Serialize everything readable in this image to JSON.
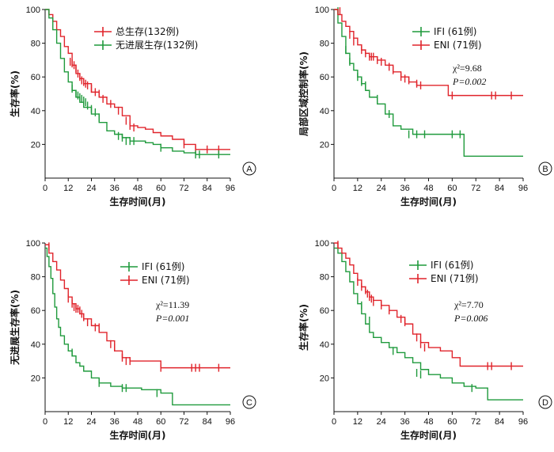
{
  "chart_data": [
    {
      "type": "line",
      "panel_label": "A",
      "xlabel": "生存时间(月)",
      "ylabel": "生存率(%)",
      "xlim": [
        0,
        96
      ],
      "ylim": [
        0,
        100
      ],
      "xticks": [
        "0",
        "12",
        "24",
        "36",
        "48",
        "60",
        "72",
        "84",
        "96"
      ],
      "yticks": [
        "20",
        "40",
        "60",
        "80",
        "100"
      ],
      "legend_position": "top-right",
      "stat_lines": [],
      "series": [
        {
          "name": "总生存(132例)",
          "color": "#e0242b",
          "x": [
            0,
            2,
            4,
            6,
            8,
            10,
            12,
            14,
            16,
            18,
            20,
            24,
            28,
            32,
            36,
            40,
            44,
            48,
            52,
            56,
            60,
            66,
            72,
            78,
            84,
            96
          ],
          "y": [
            100,
            97,
            93,
            88,
            84,
            78,
            74,
            67,
            62,
            59,
            56,
            51,
            48,
            44,
            42,
            37,
            31,
            30,
            29,
            27,
            25,
            23,
            20,
            17,
            17,
            17
          ],
          "censor_x": [
            13,
            14,
            15,
            16,
            17,
            18,
            19,
            20,
            21,
            22,
            24,
            26,
            28,
            30,
            34,
            38,
            42,
            44,
            46,
            72,
            78,
            84,
            90
          ],
          "censor_y": [
            69,
            68,
            67,
            65,
            62,
            60,
            58,
            57,
            56,
            55,
            53,
            51,
            50,
            47,
            44,
            40,
            34,
            31,
            30,
            20,
            17,
            17,
            17
          ]
        },
        {
          "name": "无进展生存(132例)",
          "color": "#1f9a3c",
          "x": [
            0,
            2,
            4,
            6,
            8,
            10,
            12,
            14,
            16,
            18,
            20,
            24,
            28,
            32,
            36,
            40,
            44,
            48,
            52,
            56,
            60,
            66,
            72,
            78,
            84,
            96
          ],
          "y": [
            100,
            95,
            88,
            80,
            71,
            63,
            57,
            52,
            48,
            45,
            42,
            38,
            33,
            28,
            26,
            24,
            22,
            22,
            21,
            20,
            18,
            16,
            15,
            14,
            14,
            14
          ],
          "censor_x": [
            14,
            16,
            17,
            18,
            19,
            20,
            21,
            22,
            24,
            26,
            28,
            38,
            40,
            42,
            44,
            46,
            60,
            78,
            80,
            90
          ],
          "censor_y": [
            53,
            50,
            49,
            48,
            47,
            46,
            45,
            43,
            41,
            39,
            36,
            25,
            24,
            22,
            22,
            22,
            18,
            14,
            14,
            14
          ]
        }
      ]
    },
    {
      "type": "line",
      "panel_label": "B",
      "xlabel": "生存时间(月)",
      "ylabel": "局部区域控制率(%)",
      "xlim": [
        0,
        96
      ],
      "ylim": [
        0,
        100
      ],
      "xticks": [
        "0",
        "12",
        "24",
        "36",
        "48",
        "60",
        "72",
        "84",
        "96"
      ],
      "yticks": [
        "20",
        "40",
        "60",
        "80",
        "100"
      ],
      "legend_position": "top-right",
      "stat_lines": [
        "χ²=9.68",
        "P=0.002"
      ],
      "series": [
        {
          "name": "IFI (61例)",
          "color": "#1f9a3c",
          "x": [
            0,
            2,
            4,
            6,
            8,
            10,
            12,
            14,
            16,
            18,
            22,
            26,
            30,
            34,
            40,
            50,
            60,
            66,
            96
          ],
          "y": [
            100,
            92,
            84,
            74,
            68,
            64,
            60,
            56,
            52,
            48,
            44,
            38,
            31,
            29,
            26,
            26,
            26,
            13,
            13
          ],
          "censor_x": [
            2,
            6,
            8,
            12,
            14,
            16,
            22,
            28,
            38,
            42,
            46,
            60,
            64
          ],
          "censor_y": [
            99,
            76,
            69,
            60,
            57,
            55,
            47,
            38,
            26,
            26,
            26,
            26,
            26
          ]
        },
        {
          "name": "ENI (71例)",
          "color": "#e0242b",
          "x": [
            0,
            2,
            4,
            6,
            8,
            10,
            12,
            14,
            16,
            18,
            22,
            26,
            30,
            34,
            38,
            42,
            48,
            54,
            58,
            70,
            96
          ],
          "y": [
            100,
            97,
            93,
            90,
            87,
            83,
            79,
            76,
            74,
            72,
            70,
            67,
            63,
            60,
            57,
            55,
            55,
            55,
            49,
            49,
            49
          ],
          "censor_x": [
            3,
            8,
            10,
            14,
            16,
            18,
            19,
            20,
            22,
            24,
            28,
            30,
            34,
            36,
            38,
            42,
            44,
            60,
            80,
            82,
            90
          ],
          "censor_y": [
            99,
            85,
            81,
            76,
            74,
            72,
            72,
            72,
            70,
            69,
            66,
            64,
            60,
            59,
            58,
            56,
            55,
            49,
            49,
            49,
            49
          ]
        }
      ]
    },
    {
      "type": "line",
      "panel_label": "C",
      "xlabel": "生存时间(月)",
      "ylabel": "无进展生存率(%)",
      "xlim": [
        0,
        96
      ],
      "ylim": [
        0,
        100
      ],
      "xticks": [
        "0",
        "12",
        "24",
        "36",
        "48",
        "60",
        "72",
        "84",
        "96"
      ],
      "yticks": [
        "20",
        "40",
        "60",
        "80",
        "100"
      ],
      "legend_position": "top-right",
      "stat_lines": [
        "χ²=11.39",
        "P=0.001"
      ],
      "series": [
        {
          "name": "IFI (61例)",
          "color": "#1f9a3c",
          "x": [
            0,
            1,
            2,
            3,
            4,
            5,
            6,
            7,
            8,
            10,
            12,
            14,
            16,
            18,
            20,
            24,
            28,
            34,
            40,
            50,
            60,
            66,
            96
          ],
          "y": [
            97,
            92,
            86,
            79,
            70,
            62,
            55,
            50,
            45,
            40,
            36,
            33,
            29,
            27,
            24,
            20,
            17,
            15,
            14,
            13,
            11,
            4,
            4
          ],
          "censor_x": [
            14,
            28,
            40,
            42,
            58
          ],
          "censor_y": [
            35,
            17,
            14,
            14,
            11
          ]
        },
        {
          "name": "ENI (71例)",
          "color": "#e0242b",
          "x": [
            0,
            2,
            4,
            6,
            8,
            10,
            12,
            14,
            16,
            18,
            20,
            24,
            28,
            32,
            36,
            40,
            44,
            48,
            60,
            72,
            96
          ],
          "y": [
            99,
            94,
            89,
            84,
            78,
            73,
            68,
            64,
            61,
            58,
            55,
            51,
            47,
            42,
            36,
            32,
            30,
            30,
            26,
            26,
            26
          ],
          "censor_x": [
            2,
            12,
            14,
            15,
            16,
            17,
            18,
            19,
            20,
            22,
            26,
            28,
            34,
            36,
            40,
            42,
            44,
            60,
            76,
            78,
            80,
            90
          ],
          "censor_y": [
            98,
            67,
            64,
            62,
            61,
            61,
            60,
            58,
            56,
            53,
            50,
            50,
            40,
            38,
            32,
            30,
            30,
            26,
            26,
            26,
            26,
            26
          ]
        }
      ]
    },
    {
      "type": "line",
      "panel_label": "D",
      "xlabel": "生存时间(月)",
      "ylabel": "生存率(%)",
      "xlim": [
        0,
        96
      ],
      "ylim": [
        0,
        100
      ],
      "xticks": [
        "0",
        "12",
        "24",
        "36",
        "48",
        "60",
        "72",
        "84",
        "96"
      ],
      "yticks": [
        "20",
        "40",
        "60",
        "80",
        "100"
      ],
      "legend_position": "top-right",
      "stat_lines": [
        "χ²=7.70",
        "P=0.006"
      ],
      "series": [
        {
          "name": "IFI (61例)",
          "color": "#1f9a3c",
          "x": [
            0,
            2,
            4,
            6,
            8,
            10,
            12,
            14,
            16,
            18,
            20,
            24,
            28,
            32,
            36,
            40,
            44,
            48,
            54,
            60,
            66,
            72,
            78,
            96
          ],
          "y": [
            97,
            94,
            89,
            83,
            77,
            70,
            64,
            58,
            52,
            47,
            44,
            41,
            38,
            35,
            32,
            29,
            25,
            22,
            20,
            17,
            15,
            14,
            7,
            7
          ],
          "censor_x": [
            14,
            18,
            30,
            42,
            44,
            70
          ],
          "censor_y": [
            63,
            54,
            36,
            23,
            22,
            14
          ],
          "_note": ""
        },
        {
          "name": "ENI (71例)",
          "color": "#e0242b",
          "x": [
            0,
            2,
            4,
            6,
            8,
            10,
            12,
            14,
            16,
            18,
            20,
            24,
            28,
            32,
            36,
            40,
            44,
            48,
            54,
            60,
            64,
            72,
            96
          ],
          "y": [
            100,
            97,
            94,
            91,
            87,
            82,
            78,
            74,
            71,
            68,
            66,
            63,
            60,
            56,
            52,
            46,
            41,
            38,
            36,
            32,
            27,
            27,
            27
          ],
          "censor_x": [
            2,
            12,
            14,
            16,
            17,
            18,
            19,
            20,
            24,
            28,
            34,
            36,
            42,
            44,
            46,
            78,
            80,
            90
          ],
          "censor_y": [
            99,
            77,
            74,
            72,
            70,
            68,
            67,
            65,
            63,
            60,
            55,
            53,
            44,
            40,
            38,
            27,
            27,
            27
          ]
        }
      ]
    }
  ]
}
